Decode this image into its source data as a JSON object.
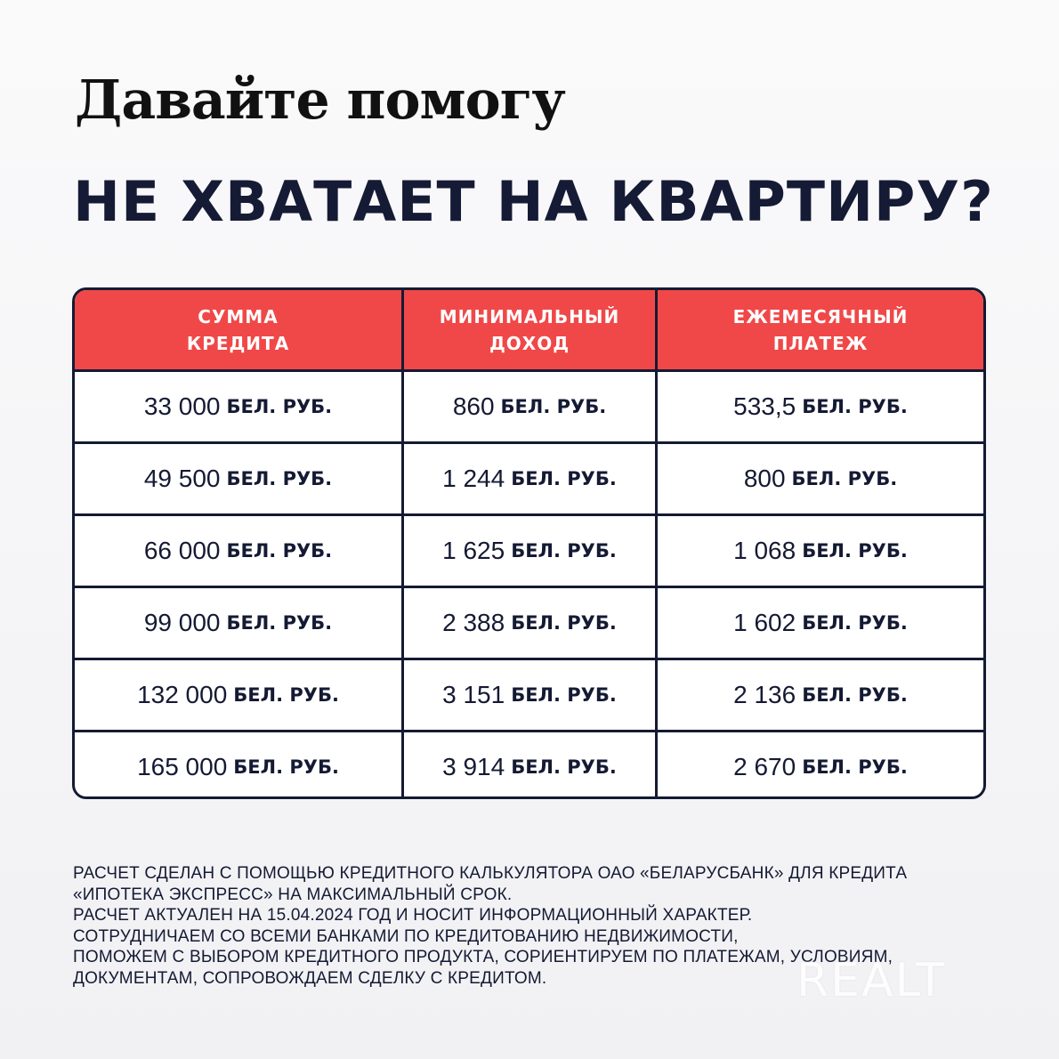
{
  "headline": "Давайте помогу",
  "subheadline": "НЕ ХВАТАЕТ НА КВАРТИРУ?",
  "table": {
    "headers": [
      "СУММА\nКРЕДИТА",
      "МИНИМАЛЬНЫЙ\nДОХОД",
      "ЕЖЕМЕСЯЧНЫЙ\nПЛАТЕЖ"
    ],
    "unit": "БЕЛ. РУБ.",
    "rows": [
      [
        "33 000",
        "860",
        "533,5"
      ],
      [
        "49 500",
        "1 244",
        "800"
      ],
      [
        "66 000",
        "1 625",
        "1 068"
      ],
      [
        "99 000",
        "2 388",
        "1 602"
      ],
      [
        "132 000",
        "3 151",
        "2 136"
      ],
      [
        "165 000",
        "3 914",
        "2 670"
      ]
    ]
  },
  "footnote": [
    "РАСЧЕТ СДЕЛАН С ПОМОЩЬЮ КРЕДИТНОГО КАЛЬКУЛЯТОРА ОАО «БЕЛАРУСБАНК» ДЛЯ КРЕДИТА",
    "«ИПОТЕКА ЭКСПРЕСС» НА МАКСИМАЛЬНЫЙ СРОК.",
    "РАСЧЕТ АКТУАЛЕН НА 15.04.2024 ГОД И НОСИТ ИНФОРМАЦИОННЫЙ ХАРАКТЕР.",
    "СОТРУДНИЧАЕМ СО ВСЕМИ БАНКАМИ ПО КРЕДИТОВАНИЮ НЕДВИЖИМОСТИ,",
    "ПОМОЖЕМ С ВЫБОРОМ КРЕДИТНОГО ПРОДУКТА, СОРИЕНТИРУЕМ ПО ПЛАТЕЖАМ, УСЛОВИЯМ,",
    "ДОКУМЕНТАМ, СОПРОВОЖДАЕМ СДЕЛКУ С КРЕДИТОМ."
  ],
  "watermark": "REALT",
  "colors": {
    "accent": "#f04848",
    "dark": "#141a33"
  }
}
